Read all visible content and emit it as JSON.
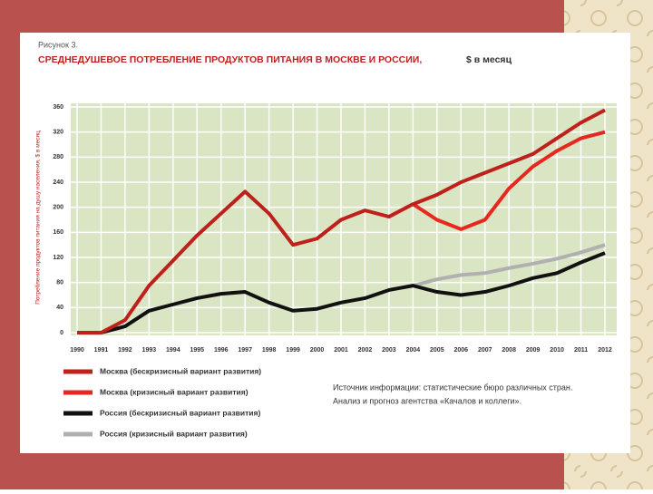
{
  "chart_data": {
    "type": "line",
    "figure_label": "Рисунок 3.",
    "title": "СРЕДНЕДУШЕВОЕ ПОТРЕБЛЕНИЕ ПРОДУКТОВ ПИТАНИЯ В МОСКВЕ И РОССИИ,",
    "subtitle": "$ в месяц",
    "y_label": "Потребление продуктов питания на душу населения, $ в месяц",
    "categories": [
      "1990",
      "1991",
      "1992",
      "1993",
      "1994",
      "1995",
      "1996",
      "1997",
      "1998",
      "1999",
      "2000",
      "2001",
      "2002",
      "2003",
      "2004",
      "2005",
      "2006",
      "2007",
      "2008",
      "2009",
      "2010",
      "2011",
      "2012"
    ],
    "ylim": [
      0,
      360
    ],
    "yticks": [
      0,
      40,
      80,
      120,
      160,
      200,
      240,
      280,
      320,
      360
    ],
    "grid": true,
    "series": [
      {
        "name": "Москва (бескризисный вариант развития)",
        "color": "#c0201c",
        "values": [
          0,
          0,
          20,
          75,
          115,
          155,
          190,
          225,
          190,
          140,
          150,
          180,
          195,
          185,
          205,
          220,
          240,
          255,
          270,
          285,
          310,
          335,
          355
        ]
      },
      {
        "name": "Москва (кризисный вариант развития)",
        "color": "#e8281e",
        "values": [
          null,
          null,
          null,
          null,
          null,
          null,
          null,
          null,
          null,
          null,
          null,
          null,
          null,
          null,
          205,
          180,
          165,
          180,
          230,
          265,
          290,
          310,
          320
        ]
      },
      {
        "name": "Россия (бескризисный вариант развития)",
        "color": "#111111",
        "values": [
          0,
          0,
          10,
          35,
          45,
          55,
          62,
          65,
          48,
          35,
          38,
          48,
          55,
          68,
          75,
          65,
          60,
          65,
          75,
          87,
          95,
          112,
          127
        ]
      },
      {
        "name": "Россия (кризисный вариант развития)",
        "color": "#b0b0b0",
        "values": [
          null,
          null,
          null,
          null,
          null,
          null,
          null,
          null,
          null,
          null,
          null,
          null,
          null,
          null,
          75,
          85,
          92,
          95,
          103,
          110,
          118,
          128,
          140
        ]
      }
    ],
    "source": [
      "Источник информации: статистические бюро различных стран.",
      "Анализ и прогноз агентства «Качалов и коллеги»."
    ]
  }
}
